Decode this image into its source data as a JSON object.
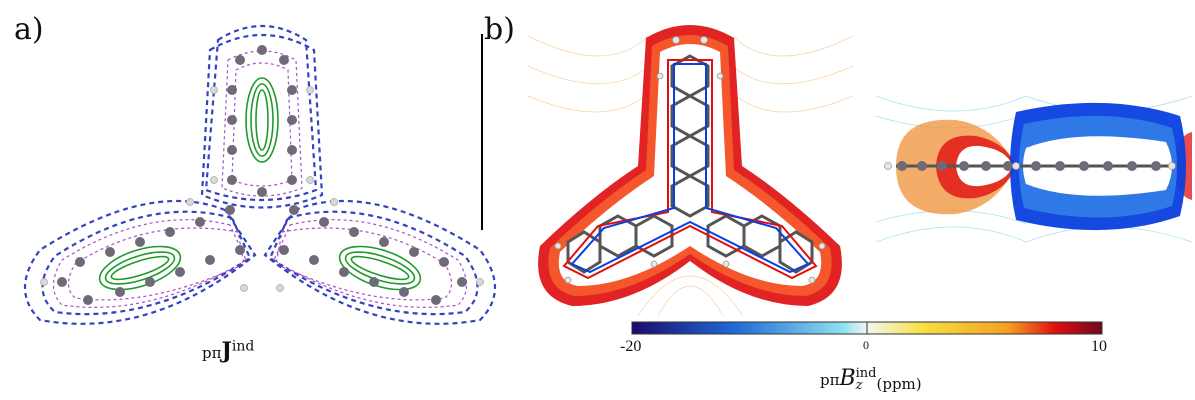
{
  "panels": {
    "a": {
      "label": "a)"
    },
    "b": {
      "label": "b)"
    }
  },
  "captions": {
    "current_density": {
      "prefix": "pπ",
      "symbol": "J",
      "superscript": "ind"
    },
    "shielding_field": {
      "prefix": "pπ",
      "symbol": "B",
      "superscript": "ind",
      "subscript": "z",
      "unit": "(ppm)"
    }
  },
  "colorbar": {
    "ticks": [
      "-20",
      "0",
      "10"
    ],
    "colors": {
      "low": "#1b0a6e",
      "mid_low": "#1f6bd8",
      "zero": "#f2f7ef",
      "mid_high": "#f5a020",
      "high": "#6d0a1a"
    }
  },
  "colors": {
    "dia_arrows": "#1f2fb8",
    "para_arrows": "#9b2fc0",
    "ring_arrows": "#1f9b2a",
    "atoms": "#6e6a78",
    "hydrogen": "#d8d8d8",
    "bond": "#555555",
    "positive_field": "#e01010",
    "negative_field": "#0a3fe0"
  }
}
